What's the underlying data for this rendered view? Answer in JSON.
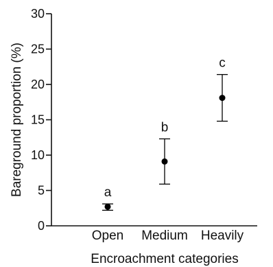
{
  "chart_data": {
    "type": "scatter",
    "title": "",
    "xlabel": "Encroachment categories",
    "ylabel": "Bareground proportion (%)",
    "categories": [
      "Open",
      "Medium",
      "Heavily"
    ],
    "series": [
      {
        "values": [
          2.7,
          9.1,
          18.1
        ],
        "error_low": [
          2.2,
          5.9,
          14.8
        ],
        "error_high": [
          3.1,
          12.3,
          21.4
        ],
        "significance_letters": [
          "a",
          "b",
          "c"
        ]
      }
    ],
    "ylim": [
      0,
      30
    ],
    "yticks": [
      0,
      5,
      10,
      15,
      20,
      25,
      30
    ],
    "grid": false,
    "colors": {
      "marker": "#000000",
      "axis": "#111111"
    }
  }
}
